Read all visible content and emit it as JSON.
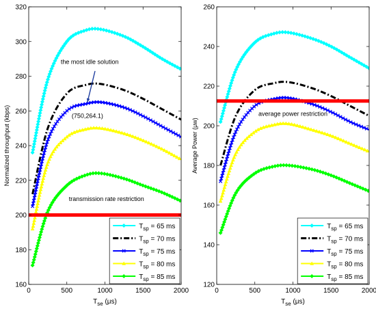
{
  "chart_data": [
    {
      "type": "line",
      "ylabel": "Normalized throughput (kbps)",
      "xlabel_main": "T",
      "xlabel_sub": "se",
      "xlabel_unit": " (μs)",
      "xlim": [
        0,
        2000
      ],
      "ylim": [
        160,
        320
      ],
      "xticks": [
        0,
        500,
        1000,
        1500,
        2000
      ],
      "yticks": [
        160,
        180,
        200,
        220,
        240,
        260,
        280,
        300,
        320
      ],
      "legend_position": "bottom-right",
      "series": [
        {
          "name_main": "T",
          "name_sub": "sp",
          "name_rest": " = 65 ms",
          "color": "#00ffff",
          "marker": "diamond",
          "dash": "",
          "width": 2,
          "x": [
            50,
            250,
            500,
            750,
            950,
            1250,
            1500,
            1750,
            2000
          ],
          "y": [
            236,
            278,
            300,
            306.5,
            307,
            303,
            297,
            290,
            284
          ]
        },
        {
          "name_main": "T",
          "name_sub": "sp",
          "name_rest": " = 70 ms",
          "color": "#000000",
          "marker": "",
          "dash": "8,3,2,3",
          "width": 3,
          "x": [
            50,
            250,
            500,
            750,
            950,
            1250,
            1500,
            1750,
            2000
          ],
          "y": [
            212,
            250,
            270,
            275,
            275.5,
            272,
            267,
            261,
            255
          ]
        },
        {
          "name_main": "T",
          "name_sub": "sp",
          "name_rest": " = 75 ms",
          "color": "#0000ff",
          "marker": "x",
          "dash": "",
          "width": 2,
          "x": [
            50,
            250,
            500,
            750,
            950,
            1250,
            1500,
            1750,
            2000
          ],
          "y": [
            205,
            243,
            260,
            264.1,
            265,
            262,
            257,
            251,
            245
          ]
        },
        {
          "name_main": "T",
          "name_sub": "sp",
          "name_rest": " = 80 ms",
          "color": "#ffff00",
          "marker": "triangle",
          "dash": "",
          "width": 2,
          "x": [
            50,
            250,
            500,
            750,
            950,
            1250,
            1500,
            1750,
            2000
          ],
          "y": [
            192,
            230,
            245,
            249.5,
            250,
            247,
            243,
            238,
            232
          ]
        },
        {
          "name_main": "T",
          "name_sub": "sp",
          "name_rest": " = 85 ms",
          "color": "#00ff00",
          "marker": "diamond",
          "dash": "",
          "width": 2,
          "x": [
            50,
            250,
            500,
            750,
            950,
            1250,
            1500,
            1750,
            2000
          ],
          "y": [
            171,
            202,
            217,
            223,
            224,
            221,
            217,
            213,
            208
          ]
        }
      ],
      "hline": {
        "y": 200,
        "color": "#ff0000",
        "width": 5
      },
      "annotations": [
        {
          "text": "transmission rate restriction",
          "x": 1020,
          "y": 208
        },
        {
          "text": "the most idle solution",
          "x": 800,
          "y": 287
        },
        {
          "text": "(750,264.1)",
          "x": 770,
          "y": 256
        }
      ],
      "arrow": {
        "from_x": 870,
        "from_y": 283,
        "to_x": 770,
        "to_y": 265
      }
    },
    {
      "type": "line",
      "ylabel": "Average Power (μw)",
      "xlabel_main": "T",
      "xlabel_sub": "se",
      "xlabel_unit": " (μs)",
      "xlim": [
        0,
        2000
      ],
      "ylim": [
        120,
        260
      ],
      "xticks": [
        0,
        500,
        1000,
        1500,
        2000
      ],
      "yticks": [
        120,
        140,
        160,
        180,
        200,
        220,
        240,
        260
      ],
      "legend_position": "bottom-right",
      "series": [
        {
          "name_main": "T",
          "name_sub": "sp",
          "name_rest": " = 65 ms",
          "color": "#00ffff",
          "marker": "diamond",
          "dash": "",
          "width": 2,
          "x": [
            50,
            250,
            500,
            750,
            950,
            1250,
            1500,
            1750,
            2000
          ],
          "y": [
            202,
            228,
            242,
            246.5,
            247,
            244,
            240,
            234.5,
            229
          ]
        },
        {
          "name_main": "T",
          "name_sub": "sp",
          "name_rest": " = 70 ms",
          "color": "#000000",
          "marker": "",
          "dash": "8,3,2,3",
          "width": 3,
          "x": [
            50,
            250,
            500,
            750,
            950,
            1250,
            1500,
            1750,
            2000
          ],
          "y": [
            180,
            205,
            218,
            221.5,
            222,
            219,
            215,
            210,
            205
          ]
        },
        {
          "name_main": "T",
          "name_sub": "sp",
          "name_rest": " = 75 ms",
          "color": "#0000ff",
          "marker": "x",
          "dash": "",
          "width": 2,
          "x": [
            50,
            250,
            500,
            750,
            950,
            1250,
            1500,
            1750,
            2000
          ],
          "y": [
            172,
            197,
            210,
            213.5,
            214,
            211,
            207,
            202,
            198
          ]
        },
        {
          "name_main": "T",
          "name_sub": "sp",
          "name_rest": " = 80 ms",
          "color": "#ffff00",
          "marker": "triangle",
          "dash": "",
          "width": 2,
          "x": [
            50,
            250,
            500,
            750,
            950,
            1250,
            1500,
            1750,
            2000
          ],
          "y": [
            162,
            186,
            197,
            200.5,
            201,
            198,
            195,
            191,
            187
          ]
        },
        {
          "name_main": "T",
          "name_sub": "sp",
          "name_rest": " = 85 ms",
          "color": "#00ff00",
          "marker": "diamond",
          "dash": "",
          "width": 2,
          "x": [
            50,
            250,
            500,
            750,
            950,
            1250,
            1500,
            1750,
            2000
          ],
          "y": [
            146,
            166,
            176,
            179.5,
            180,
            178,
            175,
            171,
            167
          ]
        }
      ],
      "hline": {
        "y": 212.5,
        "color": "#ff0000",
        "width": 5
      },
      "annotations": [
        {
          "text": "average power restriction",
          "x": 1000,
          "y": 205
        }
      ]
    }
  ]
}
